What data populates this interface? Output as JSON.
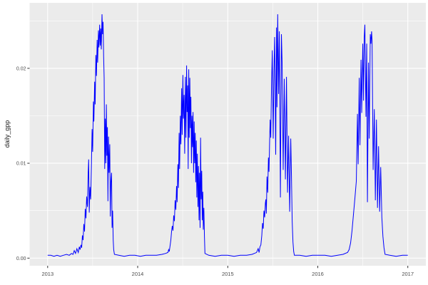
{
  "figure": {
    "kind": "ggplot2 time-series plot",
    "background": "#FFFFFF"
  },
  "chart_data": {
    "type": "line",
    "title": "",
    "xlabel": "",
    "ylabel": "daily_gpp",
    "legend": "none",
    "grid": true,
    "xlim": [
      2012.8,
      2017.2
    ],
    "ylim": [
      -0.0008,
      0.0269
    ],
    "x_ticks": [
      2013,
      2014,
      2015,
      2016,
      2017
    ],
    "x_tick_labels": [
      "2013",
      "2014",
      "2015",
      "2016",
      "2017"
    ],
    "x_minor": [
      2013.5,
      2014.5,
      2015.5,
      2016.5
    ],
    "y_ticks": [
      0.0,
      0.01,
      0.02
    ],
    "y_tick_labels": [
      "0.00",
      "0.01",
      "0.02"
    ],
    "y_minor": [
      0.005,
      0.015,
      0.025
    ],
    "colors": {
      "panel_bg": "#EBEBEB",
      "grid_major": "#FFFFFF",
      "grid_minor": "#FFFFFF",
      "line": "#0000FF",
      "tick_mark": "#333333",
      "tick_label": "#4D4D4D",
      "axis_title": "#1A1A1A"
    },
    "series": [
      {
        "name": "daily_gpp",
        "color": "#0000FF",
        "points": [
          [
            2013.0,
            0.0003
          ],
          [
            2013.035,
            0.0003
          ],
          [
            2013.07,
            0.0002
          ],
          [
            2013.105,
            0.0003
          ],
          [
            2013.14,
            0.0002
          ],
          [
            2013.175,
            0.0003
          ],
          [
            2013.21,
            0.0004
          ],
          [
            2013.24,
            0.0003
          ],
          [
            2013.265,
            0.0005
          ],
          [
            2013.282,
            0.0004
          ],
          [
            2013.296,
            0.0008
          ],
          [
            2013.31,
            0.0005
          ],
          [
            2013.325,
            0.001
          ],
          [
            2013.34,
            0.0006
          ],
          [
            2013.352,
            0.0012
          ],
          [
            2013.361,
            0.0009
          ],
          [
            2013.37,
            0.0014
          ],
          [
            2013.378,
            0.0011
          ],
          [
            2013.386,
            0.0024
          ],
          [
            2013.394,
            0.0019
          ],
          [
            2013.402,
            0.0036
          ],
          [
            2013.41,
            0.0028
          ],
          [
            2013.418,
            0.0052
          ],
          [
            2013.426,
            0.0042
          ],
          [
            2013.434,
            0.0065
          ],
          [
            2013.442,
            0.0054
          ],
          [
            2013.45,
            0.009
          ],
          [
            2013.456,
            0.0104
          ],
          [
            2013.462,
            0.0048
          ],
          [
            2013.47,
            0.0075
          ],
          [
            2013.478,
            0.0062
          ],
          [
            2013.486,
            0.0095
          ],
          [
            2013.494,
            0.0136
          ],
          [
            2013.5,
            0.0112
          ],
          [
            2013.508,
            0.0165
          ],
          [
            2013.514,
            0.0144
          ],
          [
            2013.522,
            0.0186
          ],
          [
            2013.528,
            0.0162
          ],
          [
            2013.536,
            0.0214
          ],
          [
            2013.542,
            0.0192
          ],
          [
            2013.55,
            0.023
          ],
          [
            2013.556,
            0.0206
          ],
          [
            2013.564,
            0.024
          ],
          [
            2013.57,
            0.0222
          ],
          [
            2013.578,
            0.0246
          ],
          [
            2013.584,
            0.0224
          ],
          [
            2013.59,
            0.0242
          ],
          [
            2013.596,
            0.022
          ],
          [
            2013.604,
            0.0257
          ],
          [
            2013.61,
            0.0236
          ],
          [
            2013.616,
            0.0249
          ],
          [
            2013.622,
            0.0212
          ],
          [
            2013.628,
            0.019
          ],
          [
            2013.634,
            0.0094
          ],
          [
            2013.64,
            0.0147
          ],
          [
            2013.646,
            0.01
          ],
          [
            2013.652,
            0.0162
          ],
          [
            2013.658,
            0.0108
          ],
          [
            2013.664,
            0.0138
          ],
          [
            2013.67,
            0.006
          ],
          [
            2013.676,
            0.0128
          ],
          [
            2013.682,
            0.009
          ],
          [
            2013.69,
            0.012
          ],
          [
            2013.696,
            0.0044
          ],
          [
            2013.702,
            0.008
          ],
          [
            2013.71,
            0.009
          ],
          [
            2013.716,
            0.0032
          ],
          [
            2013.722,
            0.005
          ],
          [
            2013.728,
            0.0019
          ],
          [
            2013.734,
            0.0009
          ],
          [
            2013.742,
            0.0004
          ],
          [
            2013.79,
            0.0003
          ],
          [
            2013.85,
            0.0002
          ],
          [
            2013.91,
            0.0003
          ],
          [
            2013.97,
            0.0003
          ],
          [
            2014.03,
            0.0002
          ],
          [
            2014.09,
            0.0003
          ],
          [
            2014.15,
            0.0003
          ],
          [
            2014.21,
            0.0003
          ],
          [
            2014.27,
            0.0004
          ],
          [
            2014.31,
            0.0005
          ],
          [
            2014.336,
            0.0006
          ],
          [
            2014.344,
            0.0009
          ],
          [
            2014.351,
            0.0007
          ],
          [
            2014.36,
            0.0013
          ],
          [
            2014.368,
            0.0019
          ],
          [
            2014.376,
            0.0028
          ],
          [
            2014.384,
            0.0034
          ],
          [
            2014.392,
            0.0029
          ],
          [
            2014.4,
            0.0045
          ],
          [
            2014.408,
            0.0039
          ],
          [
            2014.416,
            0.0061
          ],
          [
            2014.424,
            0.0051
          ],
          [
            2014.432,
            0.0076
          ],
          [
            2014.438,
            0.0059
          ],
          [
            2014.446,
            0.0099
          ],
          [
            2014.452,
            0.0074
          ],
          [
            2014.46,
            0.0132
          ],
          [
            2014.466,
            0.0094
          ],
          [
            2014.474,
            0.015
          ],
          [
            2014.48,
            0.012
          ],
          [
            2014.488,
            0.0179
          ],
          [
            2014.494,
            0.013
          ],
          [
            2014.502,
            0.0193
          ],
          [
            2014.508,
            0.0147
          ],
          [
            2014.516,
            0.0172
          ],
          [
            2014.522,
            0.011
          ],
          [
            2014.53,
            0.0191
          ],
          [
            2014.536,
            0.0127
          ],
          [
            2014.543,
            0.0203
          ],
          [
            2014.549,
            0.0154
          ],
          [
            2014.555,
            0.0182
          ],
          [
            2014.561,
            0.0094
          ],
          [
            2014.567,
            0.0199
          ],
          [
            2014.573,
            0.0127
          ],
          [
            2014.579,
            0.019
          ],
          [
            2014.585,
            0.0137
          ],
          [
            2014.591,
            0.017
          ],
          [
            2014.597,
            0.01
          ],
          [
            2014.603,
            0.015
          ],
          [
            2014.609,
            0.0117
          ],
          [
            2014.615,
            0.0154
          ],
          [
            2014.621,
            0.009
          ],
          [
            2014.627,
            0.0144
          ],
          [
            2014.633,
            0.01
          ],
          [
            2014.639,
            0.0132
          ],
          [
            2014.645,
            0.008
          ],
          [
            2014.651,
            0.0124
          ],
          [
            2014.657,
            0.0064
          ],
          [
            2014.663,
            0.011
          ],
          [
            2014.669,
            0.0054
          ],
          [
            2014.675,
            0.0097
          ],
          [
            2014.681,
            0.004
          ],
          [
            2014.687,
            0.009
          ],
          [
            2014.693,
            0.0032
          ],
          [
            2014.699,
            0.0127
          ],
          [
            2014.705,
            0.0062
          ],
          [
            2014.711,
            0.0092
          ],
          [
            2014.717,
            0.004
          ],
          [
            2014.723,
            0.007
          ],
          [
            2014.729,
            0.003
          ],
          [
            2014.735,
            0.0053
          ],
          [
            2014.741,
            0.0023
          ],
          [
            2014.747,
            0.0005
          ],
          [
            2014.79,
            0.0003
          ],
          [
            2014.86,
            0.0002
          ],
          [
            2014.93,
            0.0003
          ],
          [
            2015.0,
            0.0003
          ],
          [
            2015.07,
            0.0002
          ],
          [
            2015.14,
            0.0003
          ],
          [
            2015.21,
            0.0003
          ],
          [
            2015.27,
            0.0004
          ],
          [
            2015.32,
            0.0006
          ],
          [
            2015.338,
            0.001
          ],
          [
            2015.348,
            0.0006
          ],
          [
            2015.358,
            0.0012
          ],
          [
            2015.368,
            0.0014
          ],
          [
            2015.378,
            0.0024
          ],
          [
            2015.386,
            0.0037
          ],
          [
            2015.394,
            0.0031
          ],
          [
            2015.402,
            0.005
          ],
          [
            2015.41,
            0.0043
          ],
          [
            2015.418,
            0.0058
          ],
          [
            2015.423,
            0.0062
          ],
          [
            2015.429,
            0.0047
          ],
          [
            2015.436,
            0.0086
          ],
          [
            2015.444,
            0.0069
          ],
          [
            2015.452,
            0.0106
          ],
          [
            2015.458,
            0.0091
          ],
          [
            2015.464,
            0.0117
          ],
          [
            2015.471,
            0.0146
          ],
          [
            2015.478,
            0.0127
          ],
          [
            2015.486,
            0.018
          ],
          [
            2015.495,
            0.0219
          ],
          [
            2015.505,
            0.0126
          ],
          [
            2015.513,
            0.0196
          ],
          [
            2015.521,
            0.0233
          ],
          [
            2015.533,
            0.0109
          ],
          [
            2015.541,
            0.0243
          ],
          [
            2015.547,
            0.0159
          ],
          [
            2015.555,
            0.0257
          ],
          [
            2015.565,
            0.0173
          ],
          [
            2015.573,
            0.0239
          ],
          [
            2015.585,
            0.0064
          ],
          [
            2015.596,
            0.0236
          ],
          [
            2015.604,
            0.0206
          ],
          [
            2015.616,
            0.0093
          ],
          [
            2015.628,
            0.0189
          ],
          [
            2015.64,
            0.0083
          ],
          [
            2015.652,
            0.0191
          ],
          [
            2015.664,
            0.0069
          ],
          [
            2015.676,
            0.0129
          ],
          [
            2015.688,
            0.0049
          ],
          [
            2015.7,
            0.0126
          ],
          [
            2015.708,
            0.0086
          ],
          [
            2015.716,
            0.0039
          ],
          [
            2015.724,
            0.0017
          ],
          [
            2015.732,
            0.0007
          ],
          [
            2015.74,
            0.0003
          ],
          [
            2015.8,
            0.0003
          ],
          [
            2015.87,
            0.0002
          ],
          [
            2015.94,
            0.0003
          ],
          [
            2016.01,
            0.0003
          ],
          [
            2016.08,
            0.0003
          ],
          [
            2016.15,
            0.0002
          ],
          [
            2016.22,
            0.0003
          ],
          [
            2016.28,
            0.0004
          ],
          [
            2016.33,
            0.0006
          ],
          [
            2016.348,
            0.0009
          ],
          [
            2016.364,
            0.0016
          ],
          [
            2016.38,
            0.0029
          ],
          [
            2016.396,
            0.0046
          ],
          [
            2016.412,
            0.0063
          ],
          [
            2016.428,
            0.0081
          ],
          [
            2016.44,
            0.0152
          ],
          [
            2016.448,
            0.0099
          ],
          [
            2016.46,
            0.019
          ],
          [
            2016.468,
            0.0119
          ],
          [
            2016.48,
            0.0209
          ],
          [
            2016.488,
            0.0153
          ],
          [
            2016.5,
            0.0226
          ],
          [
            2016.508,
            0.0166
          ],
          [
            2016.516,
            0.0233
          ],
          [
            2016.523,
            0.0246
          ],
          [
            2016.535,
            0.0149
          ],
          [
            2016.543,
            0.0226
          ],
          [
            2016.551,
            0.0059
          ],
          [
            2016.563,
            0.0206
          ],
          [
            2016.571,
            0.0126
          ],
          [
            2016.583,
            0.0236
          ],
          [
            2016.59,
            0.0226
          ],
          [
            2016.597,
            0.0239
          ],
          [
            2016.603,
            0.0229
          ],
          [
            2016.615,
            0.0093
          ],
          [
            2016.627,
            0.0157
          ],
          [
            2016.639,
            0.0061
          ],
          [
            2016.651,
            0.0146
          ],
          [
            2016.663,
            0.0053
          ],
          [
            2016.675,
            0.0118
          ],
          [
            2016.687,
            0.0049
          ],
          [
            2016.699,
            0.0096
          ],
          [
            2016.711,
            0.0043
          ],
          [
            2016.723,
            0.0023
          ],
          [
            2016.735,
            0.0011
          ],
          [
            2016.747,
            0.0004
          ],
          [
            2016.8,
            0.0003
          ],
          [
            2016.87,
            0.0002
          ],
          [
            2016.94,
            0.0003
          ],
          [
            2017.0,
            0.0003
          ]
        ]
      }
    ]
  }
}
